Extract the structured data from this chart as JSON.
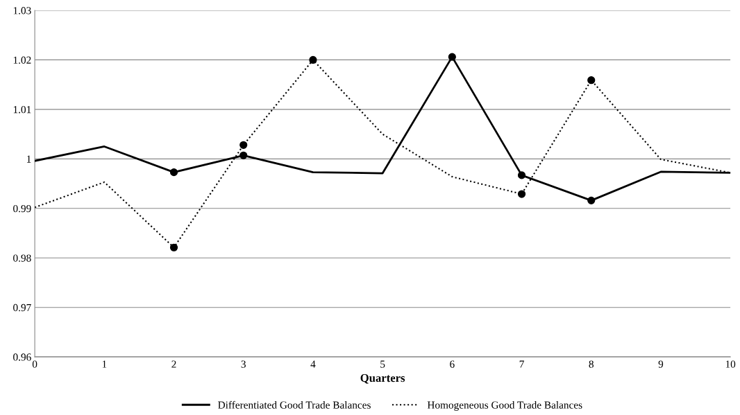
{
  "chart_data": {
    "type": "line",
    "xlabel": "Quarters",
    "x": [
      0,
      1,
      2,
      3,
      4,
      5,
      6,
      7,
      8,
      9,
      10
    ],
    "series": [
      {
        "name": "Differentiated Good Trade Balances",
        "color": "#000000",
        "line_style": "solid",
        "values": [
          0.9996,
          1.0025,
          0.9973,
          1.0007,
          0.9973,
          0.9971,
          1.0206,
          0.9967,
          0.9916,
          0.9974,
          0.9972
        ]
      },
      {
        "name": "Homogeneous Good Trade Balances",
        "color": "#000000",
        "line_style": "dotted",
        "values": [
          0.9902,
          0.9953,
          0.9821,
          1.0028,
          1.02,
          1.005,
          0.9964,
          0.9929,
          1.0159,
          0.9999,
          0.9972
        ]
      },
      {
        "type": "scatter",
        "color": "#000000",
        "marker": "circle",
        "x": [
          2,
          3,
          6,
          7,
          8
        ],
        "values": [
          0.9973,
          1.0007,
          1.0206,
          0.9967,
          0.9916
        ]
      },
      {
        "type": "scatter",
        "color": "#000000",
        "marker": "circle",
        "x": [
          2,
          3,
          4,
          7,
          8
        ],
        "values": [
          0.9821,
          1.0028,
          1.02,
          0.9929,
          1.0159
        ]
      }
    ],
    "xlim": [
      0,
      10
    ],
    "xticks": [
      0,
      1,
      2,
      3,
      4,
      5,
      6,
      7,
      8,
      9,
      10
    ],
    "ylim": [
      0.96,
      1.03
    ],
    "yticks": [
      {
        "value": 0.96,
        "label": "0.96"
      },
      {
        "value": 0.97,
        "label": "0.97"
      },
      {
        "value": 0.98,
        "label": "0.98"
      },
      {
        "value": 0.99,
        "label": "0.99"
      },
      {
        "value": 1,
        "label": "1"
      },
      {
        "value": 1.01,
        "label": "1.01"
      },
      {
        "value": 1.02,
        "label": "1.02"
      },
      {
        "value": 1.03,
        "label": "1.03"
      }
    ],
    "grid": "y",
    "legend": "bottom"
  }
}
